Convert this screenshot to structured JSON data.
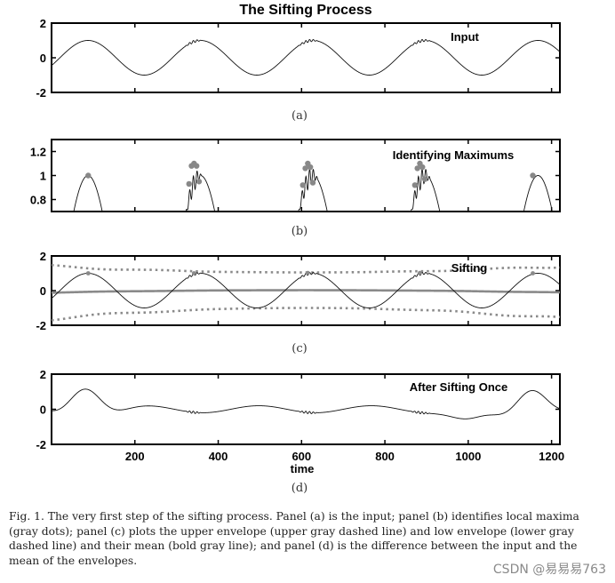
{
  "chart_data": [
    {
      "type": "line",
      "panel_label": "(a)",
      "title": "The Sifting Process",
      "legend_text": "Input",
      "xlim": [
        0,
        1220
      ],
      "ylim": [
        -2,
        2
      ],
      "yticks": [
        -2,
        0,
        2
      ],
      "xticks": [],
      "series": [
        {
          "name": "input",
          "color": "#000000",
          "style": "thin",
          "formula": "sin(2*pi*(t-20)/270) + 0.07*sin(2*pi*t/9) inside windows [320,360], [590,640], [860,910]"
        }
      ]
    },
    {
      "type": "scatter",
      "panel_label": "(b)",
      "title": "Identifying Maximums",
      "xlim": [
        0,
        1220
      ],
      "ylim": [
        0.7,
        1.3
      ],
      "yticks": [
        0.8,
        1,
        1.2
      ],
      "xticks": [],
      "series": [
        {
          "name": "input",
          "color": "#000000",
          "style": "thin"
        },
        {
          "name": "local maxima",
          "color": "#888888",
          "marker": "dot",
          "points": [
            [
              88,
              1.0
            ],
            [
              330,
              0.93
            ],
            [
              336,
              1.08
            ],
            [
              342,
              1.1
            ],
            [
              348,
              1.08
            ],
            [
              354,
              0.95
            ],
            [
              603,
              0.92
            ],
            [
              609,
              1.06
            ],
            [
              615,
              1.1
            ],
            [
              621,
              1.07
            ],
            [
              627,
              0.94
            ],
            [
              872,
              0.92
            ],
            [
              878,
              1.06
            ],
            [
              884,
              1.1
            ],
            [
              890,
              1.07
            ],
            [
              896,
              0.97
            ],
            [
              1155,
              1.0
            ]
          ]
        }
      ]
    },
    {
      "type": "line",
      "panel_label": "(c)",
      "title": "Sifting",
      "xlim": [
        0,
        1220
      ],
      "ylim": [
        -2,
        2
      ],
      "yticks": [
        -2,
        0,
        2
      ],
      "xticks": [],
      "series": [
        {
          "name": "input",
          "color": "#000000",
          "style": "thin"
        },
        {
          "name": "upper envelope",
          "color": "#888888",
          "style": "dashed"
        },
        {
          "name": "lower envelope",
          "color": "#888888",
          "style": "dashed"
        },
        {
          "name": "mean of envelopes",
          "color": "#888888",
          "style": "bold"
        }
      ]
    },
    {
      "type": "line",
      "panel_label": "(d)",
      "title": "After Sifting Once",
      "xlabel": "time",
      "xlim": [
        0,
        1220
      ],
      "ylim": [
        -2,
        2
      ],
      "yticks": [
        -2,
        0,
        2
      ],
      "xticks": [
        200,
        400,
        600,
        800,
        1000,
        1200
      ],
      "series": [
        {
          "name": "input minus mean of envelopes",
          "color": "#000000",
          "style": "thin"
        }
      ]
    }
  ],
  "caption": "Fig. 1.   The very first step of the sifting process. Panel (a) is the input; panel (b) identifies local maxima (gray dots); panel (c) plots the upper envelope (upper gray dashed line) and low envelope (lower gray dashed line) and their mean (bold gray line); and panel (d) is the difference between the input and the mean of the envelopes.",
  "watermark": "CSDN @易易易763"
}
